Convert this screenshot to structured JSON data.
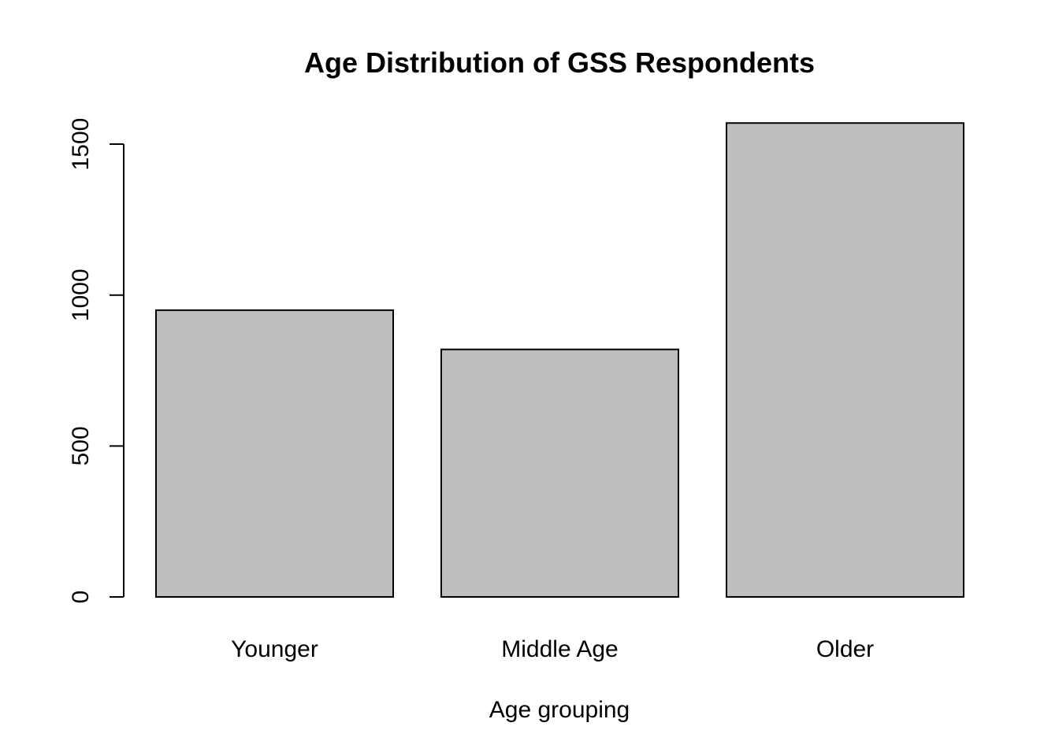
{
  "chart_data": {
    "type": "bar",
    "title": "Age Distribution of GSS Respondents",
    "xlabel": "Age grouping",
    "ylabel": "",
    "categories": [
      "Younger",
      "Middle Age",
      "Older"
    ],
    "values": [
      950,
      820,
      1570
    ],
    "ylim": [
      0,
      1570
    ],
    "yticks": [
      0,
      500,
      1000,
      1500
    ],
    "ytick_labels": [
      "0",
      "500",
      "1000",
      "1500"
    ],
    "grid": false,
    "legend": "none",
    "colors": {
      "bar_fill": "#bebebe",
      "bar_stroke": "#000000",
      "axis": "#000000",
      "background": "#ffffff"
    }
  }
}
